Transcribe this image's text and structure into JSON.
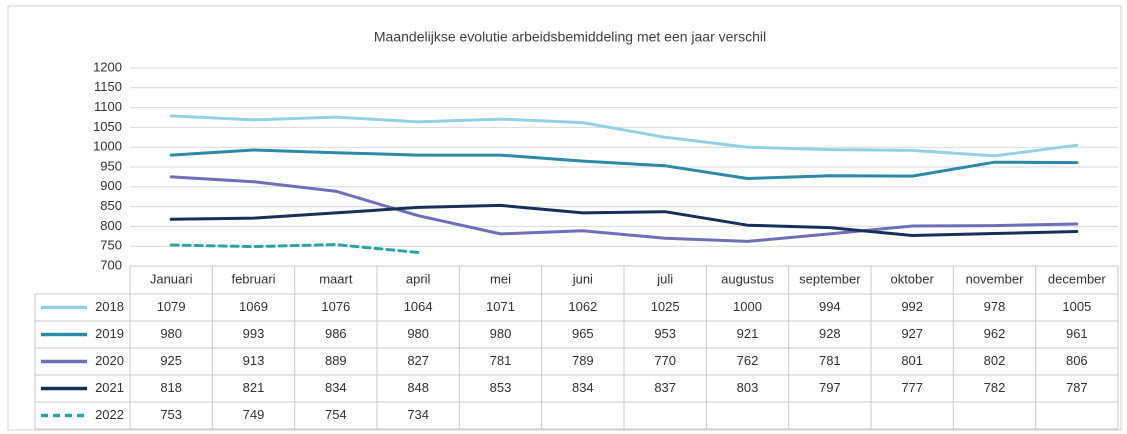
{
  "chart_data": {
    "type": "line",
    "title": "Maandelijkse evolutie arbeidsbemiddeling met een  jaar verschil",
    "categories": [
      "Januari",
      "februari",
      "maart",
      "april",
      "mei",
      "juni",
      "juli",
      "augustus",
      "september",
      "oktober",
      "november",
      "december"
    ],
    "ylim": [
      700,
      1200
    ],
    "yticks": [
      700,
      750,
      800,
      850,
      900,
      950,
      1000,
      1050,
      1100,
      1150,
      1200
    ],
    "grid": true,
    "series": [
      {
        "name": "2018",
        "color": "#92d2e4",
        "values": [
          1079,
          1069,
          1076,
          1064,
          1071,
          1062,
          1025,
          1000,
          994,
          992,
          978,
          1005
        ]
      },
      {
        "name": "2019",
        "color": "#2c8aa7",
        "values": [
          980,
          993,
          986,
          980,
          980,
          965,
          953,
          921,
          928,
          927,
          962,
          961
        ]
      },
      {
        "name": "2020",
        "color": "#6d70b8",
        "values": [
          925,
          913,
          889,
          827,
          781,
          789,
          770,
          762,
          781,
          801,
          802,
          806
        ]
      },
      {
        "name": "2021",
        "color": "#17305a",
        "values": [
          818,
          821,
          834,
          848,
          853,
          834,
          837,
          803,
          797,
          777,
          782,
          787
        ]
      },
      {
        "name": "2022",
        "color": "#2aa6a6",
        "dashed": true,
        "values": [
          753,
          749,
          754,
          734,
          null,
          null,
          null,
          null,
          null,
          null,
          null,
          null
        ]
      }
    ]
  }
}
